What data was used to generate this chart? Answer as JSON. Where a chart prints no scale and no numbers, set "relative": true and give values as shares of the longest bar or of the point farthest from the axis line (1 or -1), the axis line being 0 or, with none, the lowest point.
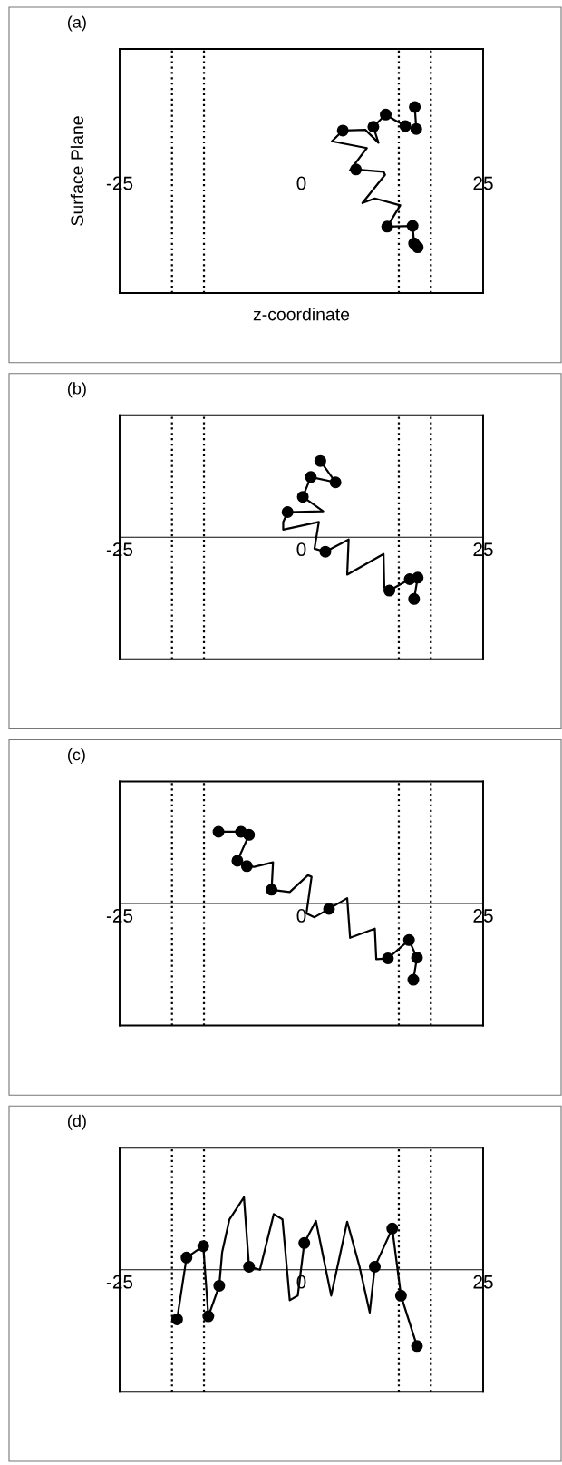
{
  "chart_data": [
    {
      "type": "line",
      "title": "(a)",
      "xlabel": "z-coordinate",
      "ylabel": "Surface Plane",
      "relative": true,
      "xlim": [
        -25,
        25
      ],
      "xticks": [
        -25,
        0,
        25
      ],
      "tick_labels": "x",
      "ref_lines": [
        {
          "axis": "x",
          "value": -17.8,
          "line_style": "dotted",
          "color": "#000000"
        },
        {
          "axis": "x",
          "value": -13.4,
          "line_style": "dotted",
          "color": "#000000"
        },
        {
          "axis": "x",
          "value": 13.4,
          "line_style": "dotted",
          "color": "#000000"
        },
        {
          "axis": "x",
          "value": 17.8,
          "line_style": "dotted",
          "color": "#000000"
        }
      ],
      "series": [
        {
          "color": "#000000",
          "line_style": "solid",
          "marker": "none",
          "x": [
            15.6,
            15.8,
            14.3,
            12.8,
            11.6,
            9.9,
            10.6,
            8.8,
            5.7,
            4.2,
            9.0,
            6.7,
            7.5,
            11.3,
            11.5,
            8.4,
            10.1,
            13.6,
            11.8,
            15.3,
            15.5,
            16.0
          ],
          "values": [
            0.84,
            0.55,
            0.59,
            0.67,
            0.74,
            0.58,
            0.37,
            0.54,
            0.53,
            0.39,
            0.3,
            0.01,
            0.02,
            -0.01,
            -0.05,
            -0.42,
            -0.36,
            -0.45,
            -0.73,
            -0.72,
            -0.95,
            -1
          ]
        },
        {
          "type": "scatter",
          "color": "#000000",
          "marker": "circle",
          "x": [
            15.6,
            15.8,
            14.3,
            11.6,
            9.9,
            5.7,
            7.5,
            11.8,
            15.3,
            15.5,
            16.0
          ],
          "values": [
            0.84,
            0.55,
            0.59,
            0.74,
            0.58,
            0.53,
            0.02,
            -0.73,
            -0.72,
            -0.95,
            -1
          ]
        }
      ]
    },
    {
      "type": "line",
      "title": "(b)",
      "relative": true,
      "xlim": [
        -25,
        25
      ],
      "xticks": [
        -25,
        0,
        25
      ],
      "tick_labels": "x",
      "ref_lines": [
        {
          "axis": "x",
          "value": -17.8,
          "line_style": "dotted",
          "color": "#000000"
        },
        {
          "axis": "x",
          "value": -13.4,
          "line_style": "dotted",
          "color": "#000000"
        },
        {
          "axis": "x",
          "value": 13.4,
          "line_style": "dotted",
          "color": "#000000"
        },
        {
          "axis": "x",
          "value": 17.8,
          "line_style": "dotted",
          "color": "#000000"
        }
      ],
      "series": [
        {
          "color": "#000000",
          "line_style": "solid",
          "marker": "none",
          "x": [
            2.6,
            4.7,
            1.3,
            0.2,
            3.0,
            -1.9,
            -2.5,
            -2.5,
            2.4,
            1.8,
            3.3,
            6.5,
            6.3,
            11.3,
            11.4,
            12.1,
            14.9,
            16.0,
            15.5
          ],
          "values": [
            1,
            0.72,
            0.79,
            0.53,
            0.34,
            0.33,
            0.2,
            0.1,
            0.2,
            -0.15,
            -0.19,
            -0.03,
            -0.49,
            -0.22,
            -0.66,
            -0.7,
            -0.55,
            -0.53,
            -0.81
          ]
        },
        {
          "type": "scatter",
          "color": "#000000",
          "marker": "circle",
          "x": [
            2.6,
            1.3,
            4.7,
            0.2,
            -1.9,
            3.3,
            12.1,
            14.9,
            16.0,
            15.5
          ],
          "values": [
            1,
            0.79,
            0.72,
            0.53,
            0.33,
            -0.19,
            -0.7,
            -0.55,
            -0.53,
            -0.81
          ]
        }
      ]
    },
    {
      "type": "line",
      "title": "(c)",
      "relative": true,
      "xlim": [
        -25,
        25
      ],
      "xticks": [
        -25,
        0,
        25
      ],
      "tick_labels": "x",
      "ref_lines": [
        {
          "axis": "x",
          "value": -17.8,
          "line_style": "dotted",
          "color": "#000000"
        },
        {
          "axis": "x",
          "value": -13.4,
          "line_style": "dotted",
          "color": "#000000"
        },
        {
          "axis": "x",
          "value": 13.4,
          "line_style": "dotted",
          "color": "#000000"
        },
        {
          "axis": "x",
          "value": 17.8,
          "line_style": "dotted",
          "color": "#000000"
        }
      ],
      "series": [
        {
          "color": "#000000",
          "line_style": "solid",
          "marker": "none",
          "x": [
            -11.4,
            -8.3,
            -7.2,
            -8.8,
            -7.5,
            -6.5,
            -3.9,
            -4.1,
            -1.6,
            0.9,
            1.4,
            0.7,
            1.8,
            3.8,
            6.3,
            6.7,
            10.1,
            10.3,
            11.9,
            14.8,
            15.9,
            15.4
          ],
          "values": [
            0.94,
            0.94,
            0.9,
            0.56,
            0.49,
            0.48,
            0.54,
            0.18,
            0.15,
            0.37,
            0.35,
            -0.13,
            -0.18,
            -0.07,
            0.07,
            -0.45,
            -0.33,
            -0.73,
            -0.72,
            -0.48,
            -0.71,
            -1
          ]
        },
        {
          "type": "scatter",
          "color": "#000000",
          "marker": "circle",
          "x": [
            -11.4,
            -8.3,
            -7.2,
            -8.8,
            -7.5,
            -4.1,
            3.8,
            11.9,
            14.8,
            15.9,
            15.4
          ],
          "values": [
            0.94,
            0.94,
            0.9,
            0.56,
            0.49,
            0.18,
            -0.07,
            -0.72,
            -0.48,
            -0.71,
            -1
          ]
        }
      ]
    },
    {
      "type": "line",
      "title": "(d)",
      "relative": true,
      "xlim": [
        -25,
        25
      ],
      "xticks": [
        -25,
        0,
        25
      ],
      "tick_labels": "x",
      "ref_lines": [
        {
          "axis": "x",
          "value": -17.8,
          "line_style": "dotted",
          "color": "#000000"
        },
        {
          "axis": "x",
          "value": -13.4,
          "line_style": "dotted",
          "color": "#000000"
        },
        {
          "axis": "x",
          "value": 13.4,
          "line_style": "dotted",
          "color": "#000000"
        },
        {
          "axis": "x",
          "value": 17.8,
          "line_style": "dotted",
          "color": "#000000"
        }
      ],
      "series": [
        {
          "color": "#000000",
          "line_style": "solid",
          "marker": "none",
          "x": [
            -17.1,
            -15.8,
            -13.5,
            -12.8,
            -11.3,
            -10.9,
            -9.9,
            -7.9,
            -7.2,
            -5.7,
            -3.8,
            -2.6,
            -1.6,
            -0.5,
            0.4,
            2.0,
            4.1,
            6.3,
            8.0,
            9.4,
            10.1,
            12.5,
            13.7,
            15.9
          ],
          "values": [
            -0.65,
            0.16,
            0.31,
            -0.61,
            -0.21,
            0.23,
            0.66,
            0.95,
            0.04,
            0,
            0.73,
            0.66,
            -0.4,
            -0.34,
            0.35,
            0.64,
            -0.34,
            0.63,
            0.04,
            -0.56,
            0.04,
            0.54,
            -0.34,
            -1
          ]
        },
        {
          "type": "scatter",
          "color": "#000000",
          "marker": "circle",
          "x": [
            -17.1,
            -15.8,
            -13.5,
            -12.8,
            -11.3,
            -7.2,
            0.4,
            10.1,
            12.5,
            13.7,
            15.9
          ],
          "values": [
            -0.65,
            0.16,
            0.31,
            -0.61,
            -0.21,
            0.04,
            0.35,
            0.04,
            0.54,
            -0.34,
            -1
          ]
        }
      ]
    }
  ]
}
